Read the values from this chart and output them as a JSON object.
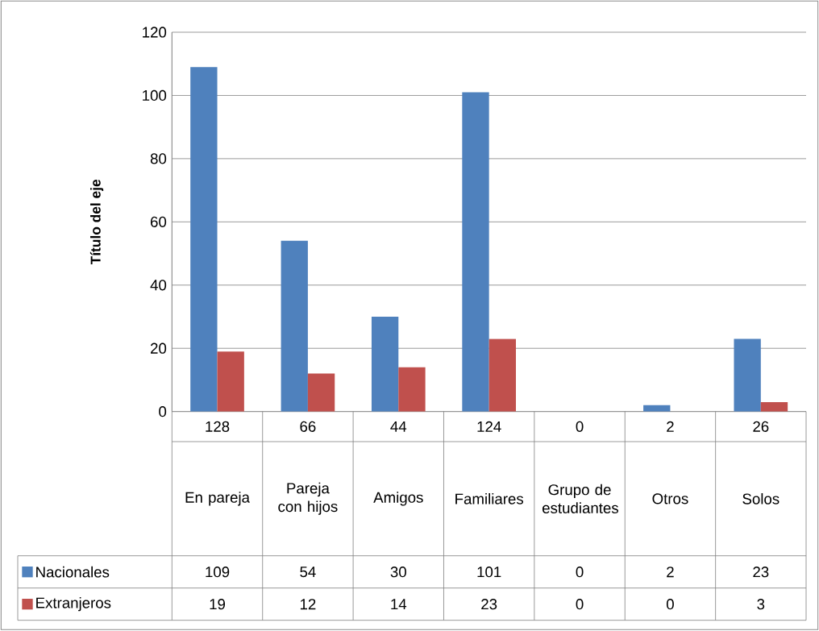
{
  "chart_data": {
    "type": "bar",
    "ylabel": "Título del eje",
    "categories": [
      "En pareja",
      "Pareja con hijos",
      "Amigos",
      "Familiares",
      "Grupo de estudiantes",
      "Otros",
      "Solos"
    ],
    "totals": [
      "128",
      "66",
      "44",
      "124",
      "0",
      "2",
      "26"
    ],
    "series": [
      {
        "name": "Nacionales",
        "color": "#4f81bd",
        "values": [
          109,
          54,
          30,
          101,
          0,
          2,
          23
        ]
      },
      {
        "name": "Extranjeros",
        "color": "#c0504d",
        "values": [
          19,
          12,
          14,
          23,
          0,
          0,
          3
        ]
      }
    ],
    "ylim": [
      0,
      120
    ],
    "yticks": [
      0,
      20,
      40,
      60,
      80,
      100,
      120
    ],
    "grid": "y",
    "legend": "bottom",
    "data_labels": true
  }
}
